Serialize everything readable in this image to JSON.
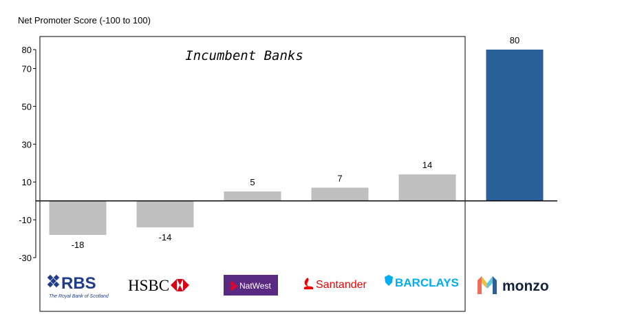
{
  "chart_data": {
    "type": "bar",
    "ylabel": "Net Promoter Score (-100 to 100)",
    "ylim": [
      -30,
      80
    ],
    "yticks": [
      -30,
      -10,
      10,
      30,
      50,
      70,
      80
    ],
    "categories": [
      "RBS",
      "HSBC",
      "NatWest",
      "Santander",
      "Barclays",
      "Monzo"
    ],
    "values": [
      -18,
      -14,
      5,
      7,
      14,
      80
    ],
    "data_labels": [
      "-18",
      "-14",
      "5",
      "7",
      "14",
      "80"
    ],
    "group_annotation": "Incumbent Banks",
    "incumbent_count": 5,
    "grid": false
  },
  "logos": {
    "rbs": {
      "text": "RBS",
      "tagline": "The Royal Bank of Scotland",
      "color": "#1f3c88"
    },
    "hsbc": {
      "text": "HSBC",
      "color": "#db0011"
    },
    "natwest": {
      "text": "NatWest",
      "color": "#5a2a82"
    },
    "santander": {
      "text": "Santander",
      "color": "#ec0000"
    },
    "barclays": {
      "text": "BARCLAYS",
      "color": "#00aeef"
    },
    "monzo": {
      "text": "monzo",
      "color": "#14233c"
    }
  },
  "colors": {
    "incumbent_bar": "#bfbfbf",
    "challenger_bar": "#2a6099",
    "axis": "#000000"
  }
}
